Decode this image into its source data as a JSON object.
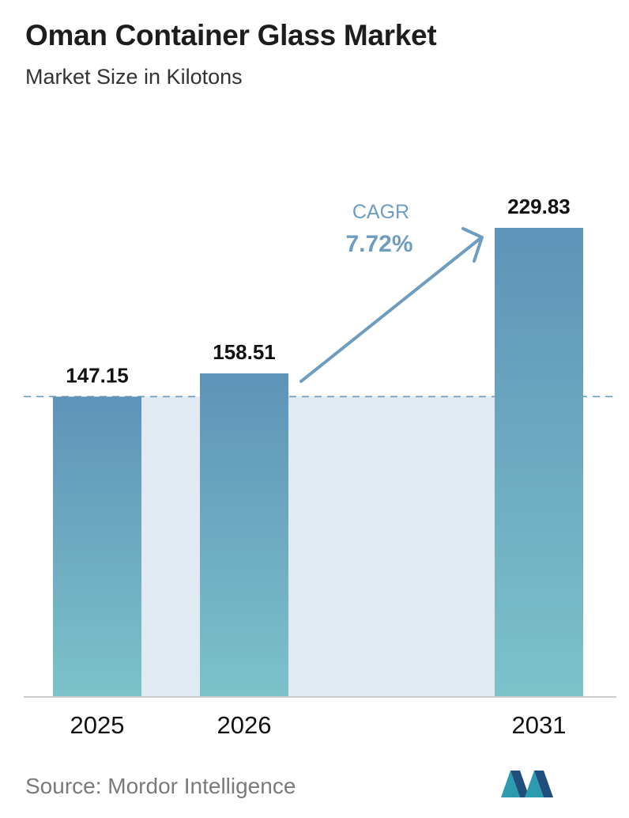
{
  "header": {
    "title": "Oman Container Glass Market",
    "subtitle": "Market Size in Kilotons"
  },
  "chart_data": {
    "type": "bar",
    "categories": [
      "2025",
      "2026",
      "2031"
    ],
    "values": [
      147.15,
      158.51,
      229.83
    ],
    "value_labels": [
      "147.15",
      "158.51",
      "229.83"
    ],
    "ylim": [
      0,
      229.83
    ],
    "reference_line_value": 147.15,
    "grid": false,
    "legend": "none",
    "annotation": {
      "label": "CAGR",
      "value": "7.72%"
    },
    "colors": {
      "bar_top": "#5f93b9",
      "bar_bottom": "#7cc2c9",
      "band": "#e1e9f2",
      "reference_line": "#6a9bbd",
      "arrow": "#6e9dc0",
      "axis": "#cccccc",
      "text": "#111111"
    }
  },
  "footer": {
    "source": "Source:  Mordor Intelligence",
    "logo_icon": "mordor-intelligence-logo-icon"
  }
}
